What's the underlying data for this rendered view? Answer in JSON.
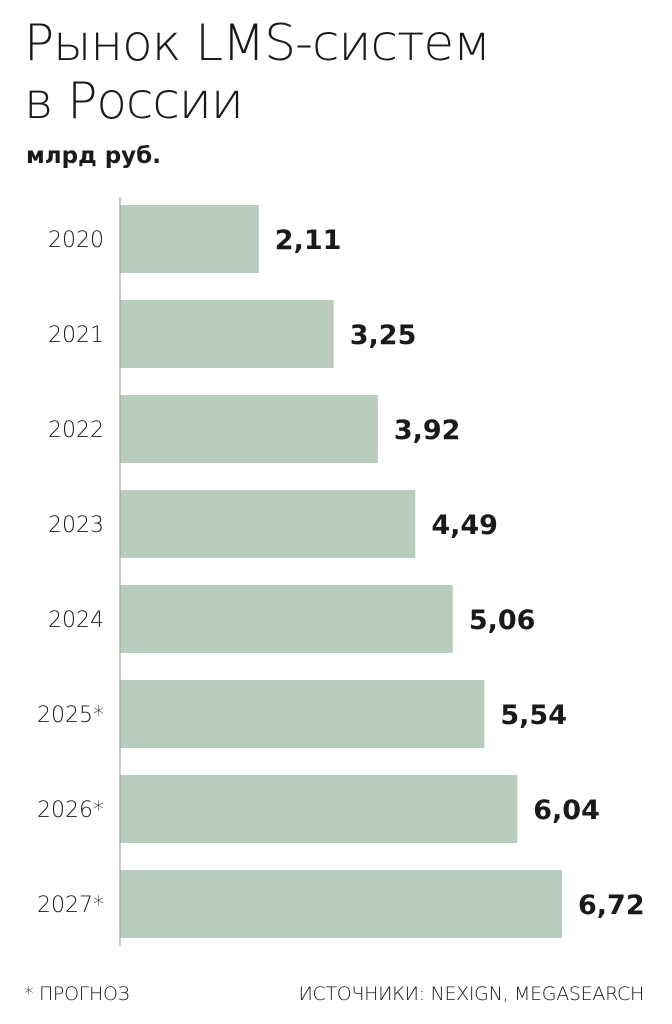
{
  "chart_data": {
    "type": "bar",
    "orientation": "horizontal",
    "title": "Рынок LMS-систем в России",
    "title_lines": [
      "Рынок LMS-систем",
      "в России"
    ],
    "unit": "млрд руб.",
    "categories": [
      "2020",
      "2021",
      "2022",
      "2023",
      "2024",
      "2025*",
      "2026*",
      "2027*"
    ],
    "values": [
      2.11,
      3.25,
      3.92,
      4.49,
      5.06,
      5.54,
      6.04,
      6.72
    ],
    "value_labels": [
      "2,11",
      "3,25",
      "3,92",
      "4,49",
      "5,06",
      "5,54",
      "6,04",
      "6,72"
    ],
    "xlim": [
      0,
      7.4
    ],
    "grid": false,
    "legend": "none",
    "bar_color": "#b9cdbe"
  },
  "footer": {
    "note": "* ПРОГНОЗ",
    "sources": "ИСТОЧНИКИ: NEXIGN, MEGASEARCH"
  }
}
